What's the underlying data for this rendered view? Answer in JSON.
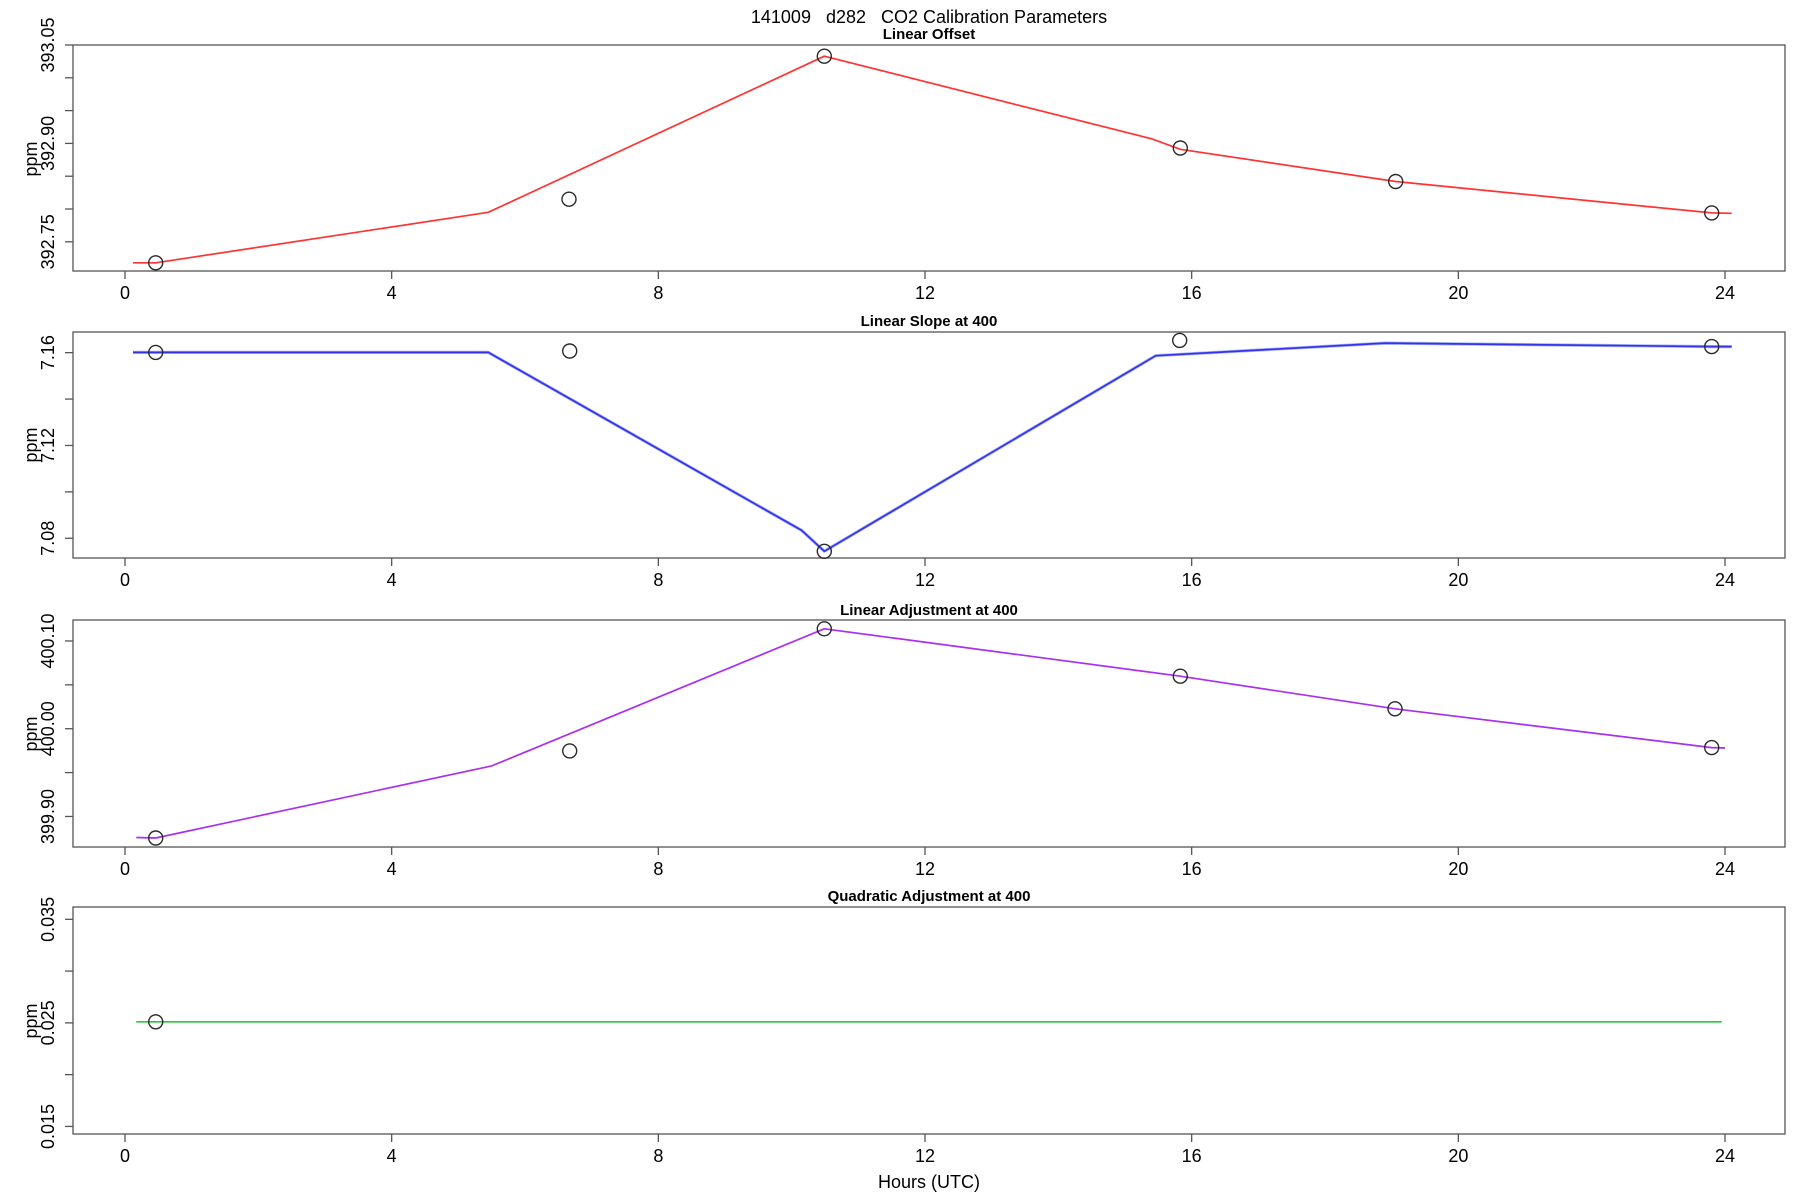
{
  "title": "141009   d282   CO2 Calibration Parameters",
  "xlabel": "Hours (UTC)",
  "chart_data": [
    {
      "type": "line",
      "title": "Linear Offset",
      "ylabel": "ppm",
      "color": "#ff3333",
      "xlim": [
        -0.78,
        24.9
      ],
      "ylim": [
        392.7055,
        393.05
      ],
      "x_ticks": [
        {
          "v": 0,
          "label": "0"
        },
        {
          "v": 4,
          "label": "4"
        },
        {
          "v": 8,
          "label": "8"
        },
        {
          "v": 12,
          "label": "12"
        },
        {
          "v": 16,
          "label": "16"
        },
        {
          "v": 20,
          "label": "20"
        },
        {
          "v": 24,
          "label": "24"
        }
      ],
      "y_ticks": [
        {
          "v": 392.75,
          "label": "392.75"
        },
        {
          "v": 392.8
        },
        {
          "v": 392.85
        },
        {
          "v": 392.9,
          "label": "392.90"
        },
        {
          "v": 392.95
        },
        {
          "v": 393.0
        },
        {
          "v": 393.05,
          "label": "393.05"
        }
      ],
      "line": [
        [
          0.12,
          392.718
        ],
        [
          0.46,
          392.718
        ],
        [
          5.45,
          392.795
        ],
        [
          10.49,
          393.033
        ],
        [
          15.4,
          392.907
        ],
        [
          15.83,
          392.891
        ],
        [
          19.06,
          392.842
        ],
        [
          23.8,
          392.794
        ],
        [
          24.1,
          392.7935
        ]
      ],
      "points": [
        [
          0.46,
          392.718
        ],
        [
          6.66,
          392.815
        ],
        [
          10.49,
          393.033
        ],
        [
          15.83,
          392.893
        ],
        [
          19.06,
          392.842
        ],
        [
          23.8,
          392.794
        ]
      ]
    },
    {
      "type": "line",
      "title": "Linear Slope at 400",
      "ylabel": "ppm",
      "color": "#3333ee",
      "halo": "#aab4f5",
      "xlim": [
        -0.78,
        24.9
      ],
      "ylim": [
        7.0715,
        7.1689
      ],
      "x_ticks": [
        {
          "v": 0,
          "label": "0"
        },
        {
          "v": 4,
          "label": "4"
        },
        {
          "v": 8,
          "label": "8"
        },
        {
          "v": 12,
          "label": "12"
        },
        {
          "v": 16,
          "label": "16"
        },
        {
          "v": 20,
          "label": "20"
        },
        {
          "v": 24,
          "label": "24"
        }
      ],
      "y_ticks": [
        {
          "v": 7.08,
          "label": "7.08"
        },
        {
          "v": 7.1
        },
        {
          "v": 7.12,
          "label": "7.12"
        },
        {
          "v": 7.14
        },
        {
          "v": 7.16,
          "label": "7.16"
        }
      ],
      "line": [
        [
          0.12,
          7.1601
        ],
        [
          5.45,
          7.1601
        ],
        [
          10.15,
          7.0834
        ],
        [
          10.49,
          7.0744
        ],
        [
          15.46,
          7.1587
        ],
        [
          18.9,
          7.1641
        ],
        [
          23.8,
          7.1626
        ],
        [
          24.1,
          7.1626
        ]
      ],
      "points": [
        [
          0.46,
          7.1601
        ],
        [
          6.67,
          7.1607
        ],
        [
          10.49,
          7.0744
        ],
        [
          15.82,
          7.1653
        ],
        [
          23.8,
          7.1626
        ]
      ]
    },
    {
      "type": "line",
      "title": "Linear Adjustment at 400",
      "ylabel": "ppm",
      "color": "#a930ee",
      "xlim": [
        -0.78,
        24.9
      ],
      "ylim": [
        399.8652,
        400.1239
      ],
      "x_ticks": [
        {
          "v": 0,
          "label": "0"
        },
        {
          "v": 4,
          "label": "4"
        },
        {
          "v": 8,
          "label": "8"
        },
        {
          "v": 12,
          "label": "12"
        },
        {
          "v": 16,
          "label": "16"
        },
        {
          "v": 20,
          "label": "20"
        },
        {
          "v": 24,
          "label": "24"
        }
      ],
      "y_ticks": [
        {
          "v": 399.9,
          "label": "399.90"
        },
        {
          "v": 399.95
        },
        {
          "v": 400.0,
          "label": "400.00"
        },
        {
          "v": 400.05
        },
        {
          "v": 400.1,
          "label": "400.10"
        }
      ],
      "line": [
        [
          0.17,
          399.876
        ],
        [
          0.46,
          399.8755
        ],
        [
          5.5,
          399.9576
        ],
        [
          10.49,
          400.1139
        ],
        [
          15.83,
          400.0599
        ],
        [
          19.05,
          400.0227
        ],
        [
          23.8,
          399.9785
        ],
        [
          24.0,
          399.978
        ]
      ],
      "points": [
        [
          0.46,
          399.8755
        ],
        [
          6.67,
          399.9747
        ],
        [
          10.49,
          400.1139
        ],
        [
          15.83,
          400.0599
        ],
        [
          19.05,
          400.0227
        ],
        [
          23.8,
          399.9785
        ]
      ]
    },
    {
      "type": "line",
      "title": "Quadratic Adjustment at 400",
      "ylabel": "ppm",
      "color": "#22cc33",
      "xlim": [
        -0.78,
        24.9
      ],
      "ylim": [
        0.01427,
        0.03619
      ],
      "x_ticks": [
        {
          "v": 0,
          "label": "0"
        },
        {
          "v": 4,
          "label": "4"
        },
        {
          "v": 8,
          "label": "8"
        },
        {
          "v": 12,
          "label": "12"
        },
        {
          "v": 16,
          "label": "16"
        },
        {
          "v": 20,
          "label": "20"
        },
        {
          "v": 24,
          "label": "24"
        }
      ],
      "y_ticks": [
        {
          "v": 0.015,
          "label": "0.015"
        },
        {
          "v": 0.02
        },
        {
          "v": 0.025,
          "label": "0.025"
        },
        {
          "v": 0.03
        },
        {
          "v": 0.035,
          "label": "0.035"
        }
      ],
      "line": [
        [
          0.17,
          0.0251
        ],
        [
          23.95,
          0.0251
        ]
      ],
      "points": [
        [
          0.46,
          0.0251
        ]
      ]
    }
  ]
}
